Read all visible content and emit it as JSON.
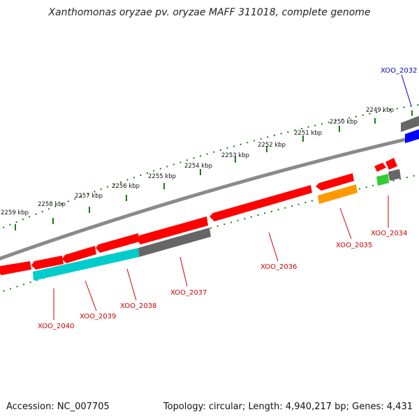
{
  "title": "Xanthomonas oryzae pv. oryzae MAFF 311018, complete genome",
  "scale_labels": [
    "2249 kbp",
    "2250 kbp",
    "2251 kbp",
    "2252 kbp",
    "2253 kbp",
    "2254 kbp",
    "2255 kbp",
    "2256 kbp",
    "2257 kbp",
    "2258 kbp",
    "2259 kbp"
  ],
  "genes": [
    {
      "name": "XOO_2032",
      "color": "#0000cc"
    },
    {
      "name": "XOO_2034",
      "color": "#cc0000"
    },
    {
      "name": "XOO_2035",
      "color": "#cc0000"
    },
    {
      "name": "XOO_2036",
      "color": "#cc0000"
    },
    {
      "name": "XOO_2037",
      "color": "#cc0000"
    },
    {
      "name": "XOO_2038",
      "color": "#cc0000"
    },
    {
      "name": "XOO_2039",
      "color": "#cc0000"
    },
    {
      "name": "XOO_2040",
      "color": "#cc0000"
    }
  ],
  "footer": {
    "accession": "Accession: NC_007705",
    "topology": "Topology: circular; Length: 4,940,217 bp; Genes: 4,431"
  },
  "colors": {
    "forward_cds": "#ff0000",
    "cds_grey": "#666666",
    "cds_cyan": "#00cccc",
    "cds_orange": "#ff9900",
    "cds_green": "#33cc33",
    "cds_blue": "#0000ff",
    "backbone": "#808080",
    "tick": "#1a7a1a"
  }
}
